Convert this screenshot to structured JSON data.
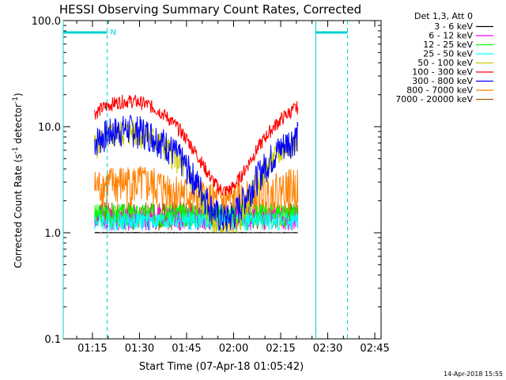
{
  "chart_data": {
    "type": "line",
    "title": "HESSI Observing Summary Count Rates, Corrected",
    "xlabel": "Start Time (07-Apr-18 01:05:42)",
    "ylabel_main": "Corrected Count Rate (s",
    "ylabel_sup1": "-1",
    "ylabel_mid": " detector",
    "ylabel_sup2": "-1",
    "ylabel_end": ")",
    "yscale": "log",
    "ylim": [
      0.1,
      100.0
    ],
    "xlim_minutes": [
      65.7,
      167.0
    ],
    "x_ticks": [
      {
        "v": 75,
        "label": "01:15"
      },
      {
        "v": 90,
        "label": "01:30"
      },
      {
        "v": 105,
        "label": "01:45"
      },
      {
        "v": 120,
        "label": "02:00"
      },
      {
        "v": 135,
        "label": "02:15"
      },
      {
        "v": 150,
        "label": "02:30"
      },
      {
        "v": 165,
        "label": "02:45"
      }
    ],
    "y_ticks": [
      {
        "v": 100.0,
        "label": "100.0"
      },
      {
        "v": 10.0,
        "label": "10.0"
      },
      {
        "v": 1.0,
        "label": "1.0"
      },
      {
        "v": 0.1,
        "label": "0.1"
      }
    ],
    "legend_header": "Det 1,3, Att 0",
    "legend_position": "right",
    "series": [
      {
        "name": "3 - 6 keV",
        "color": "#000000",
        "base": 1.0,
        "amp": 0.0,
        "jitter": 0.01,
        "seed": 1
      },
      {
        "name": "6 - 12 keV",
        "color": "#ff00ff",
        "base": 1.4,
        "amp": 0.0,
        "jitter": 0.25,
        "seed": 2
      },
      {
        "name": "12 - 25 keV",
        "color": "#00ff00",
        "base": 1.5,
        "amp": 0.0,
        "jitter": 0.25,
        "seed": 3
      },
      {
        "name": "25 - 50 keV",
        "color": "#00ffff",
        "base": 1.3,
        "amp": 0.0,
        "jitter": 0.2,
        "seed": 4
      },
      {
        "name": "50 - 100 keV",
        "color": "#cccc00",
        "base": 5.0,
        "amp": 1.6,
        "jitter": 0.3,
        "seed": 5
      },
      {
        "name": "100 - 300 keV",
        "color": "#ff0000",
        "base": 10.0,
        "amp": 1.5,
        "jitter": 0.15,
        "seed": 6
      },
      {
        "name": "300 - 800 keV",
        "color": "#0000ff",
        "base": 5.5,
        "amp": 1.5,
        "jitter": 0.35,
        "seed": 7
      },
      {
        "name": "800 - 7000 keV",
        "color": "#ff8000",
        "base": 2.5,
        "amp": 0.4,
        "jitter": 0.45,
        "seed": 8
      },
      {
        "name": "7000 - 20000 keV",
        "color": "#a06000",
        "base": 1.5,
        "amp": 0.0,
        "jitter": 0.3,
        "seed": 9
      }
    ],
    "data_range_minutes": [
      75.7,
      140.5
    ],
    "flag_label": "N",
    "annotations": {
      "saa_bars": [
        [
          65.7,
          79.7
        ],
        [
          146.2,
          156.3
        ]
      ],
      "vlines_solid": [
        65.7,
        146.2
      ],
      "vlines_dashed": [
        79.7,
        156.3
      ]
    },
    "timestamp": "14-Apr-2018 15:55"
  }
}
